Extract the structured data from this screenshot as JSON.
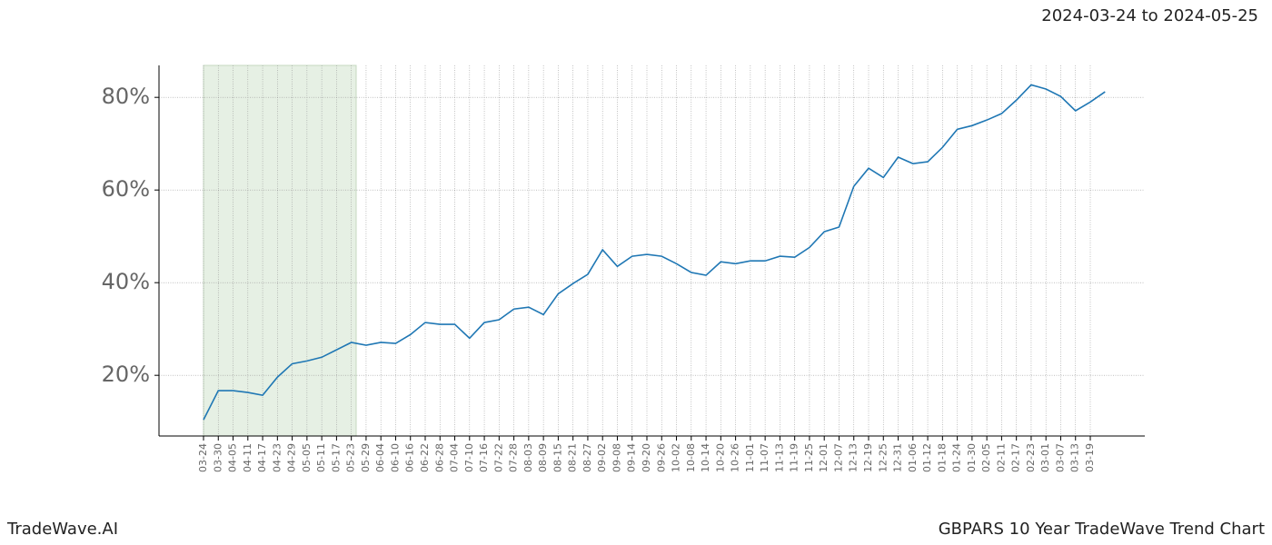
{
  "chart_data": {
    "type": "line",
    "title": "2024-03-24 to 2024-05-25",
    "footer_left": "TradeWave.AI",
    "footer_right": "GBPARS 10 Year TradeWave Trend Chart",
    "categories": [
      "03-24",
      "03-30",
      "04-05",
      "04-11",
      "04-17",
      "04-23",
      "04-29",
      "05-05",
      "05-11",
      "05-17",
      "05-23",
      "05-29",
      "06-04",
      "06-10",
      "06-16",
      "06-22",
      "06-28",
      "07-04",
      "07-10",
      "07-16",
      "07-22",
      "07-28",
      "08-03",
      "08-09",
      "08-15",
      "08-21",
      "08-27",
      "09-02",
      "09-08",
      "09-14",
      "09-20",
      "09-26",
      "10-02",
      "10-08",
      "10-14",
      "10-20",
      "10-26",
      "11-01",
      "11-07",
      "11-13",
      "11-19",
      "11-25",
      "12-01",
      "12-07",
      "12-13",
      "12-19",
      "12-25",
      "12-31",
      "01-06",
      "01-12",
      "01-18",
      "01-24",
      "01-30",
      "02-05",
      "02-11",
      "02-17",
      "02-23",
      "03-01",
      "03-07",
      "03-13",
      "03-19",
      null
    ],
    "series": [
      {
        "name": "GBPARS",
        "color": "#1f77b4",
        "values": [
          10.4,
          16.7,
          16.7,
          16.3,
          15.7,
          19.6,
          22.5,
          23.1,
          23.9,
          25.5,
          27.1,
          26.5,
          27.1,
          26.9,
          28.8,
          31.4,
          31,
          31,
          28,
          31.4,
          32,
          34.3,
          34.7,
          33.1,
          37.6,
          39.8,
          41.8,
          47.1,
          43.5,
          45.7,
          46.1,
          45.7,
          44.1,
          42.2,
          41.6,
          44.5,
          44.1,
          44.7,
          44.7,
          45.7,
          45.5,
          47.6,
          51,
          52,
          60.8,
          64.7,
          62.7,
          67.1,
          65.7,
          66.1,
          69.2,
          73.1,
          73.9,
          75.1,
          76.5,
          79.4,
          82.7,
          81.8,
          80.2,
          77.1,
          79,
          81.2
        ]
      }
    ],
    "ylim": [
      6.9,
      86.9
    ],
    "yticks": [
      {
        "value": 20,
        "label": "20%"
      },
      {
        "value": 40,
        "label": "40%"
      },
      {
        "value": 60,
        "label": "60%"
      },
      {
        "value": 80,
        "label": "80%"
      }
    ],
    "grid": true
  }
}
